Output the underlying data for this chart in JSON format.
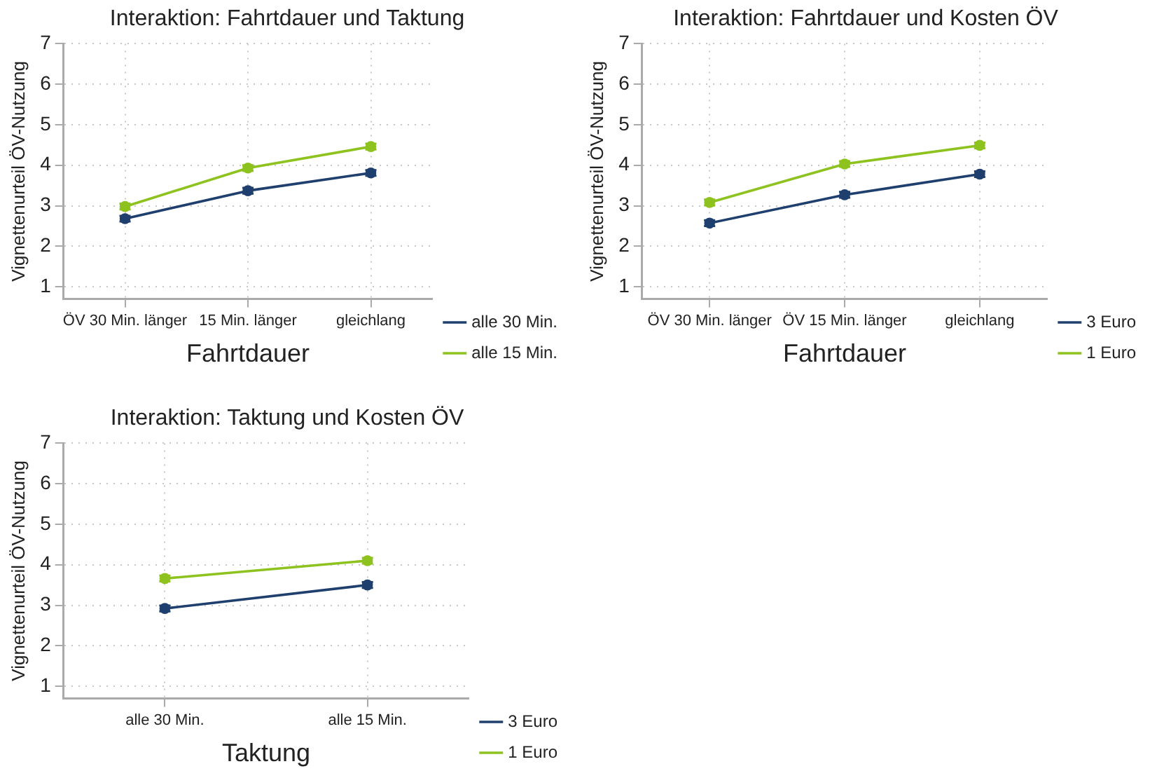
{
  "chart_data": [
    {
      "type": "line",
      "title": "Interaktion: Fahrtdauer und Taktung",
      "xlabel": "Fahrtdauer",
      "ylabel": "Vignettenurteil ÖV-Nutzung",
      "categories": [
        "ÖV 30 Min. länger",
        "15 Min. länger",
        "gleichlang"
      ],
      "series": [
        {
          "name": "alle 30 Min.",
          "color": "#1f3f6e",
          "values": [
            2.68,
            3.37,
            3.81
          ],
          "errors": [
            0.07,
            0.07,
            0.07
          ]
        },
        {
          "name": "alle 15 Min.",
          "color": "#8dc21f",
          "values": [
            2.98,
            3.93,
            4.46
          ],
          "errors": [
            0.07,
            0.07,
            0.07
          ]
        }
      ],
      "ylim": [
        0.7,
        7
      ],
      "yticks": [
        1,
        2,
        3,
        4,
        5,
        6,
        7
      ],
      "grid": true,
      "legend": "right",
      "marker": "circle"
    },
    {
      "type": "line",
      "title": "Interaktion: Fahrtdauer und Kosten ÖV",
      "xlabel": "Fahrtdauer",
      "ylabel": "Vignettenurteil ÖV-Nutzung",
      "categories": [
        "ÖV 30 Min. länger",
        "ÖV 15 Min. länger",
        "gleichlang"
      ],
      "series": [
        {
          "name": "3 Euro",
          "color": "#1f3f6e",
          "values": [
            2.57,
            3.27,
            3.78
          ],
          "errors": [
            0.07,
            0.07,
            0.07
          ]
        },
        {
          "name": "1 Euro",
          "color": "#8dc21f",
          "values": [
            3.08,
            4.03,
            4.49
          ],
          "errors": [
            0.07,
            0.07,
            0.07
          ]
        }
      ],
      "ylim": [
        0.7,
        7
      ],
      "yticks": [
        1,
        2,
        3,
        4,
        5,
        6,
        7
      ],
      "grid": true,
      "legend": "right",
      "marker": "circle"
    },
    {
      "type": "line",
      "title": "Interaktion: Taktung und Kosten ÖV",
      "xlabel": "Taktung",
      "ylabel": "Vignettenurteil ÖV-Nutzung",
      "categories": [
        "alle 30 Min.",
        "alle 15 Min."
      ],
      "series": [
        {
          "name": "3 Euro",
          "color": "#1f3f6e",
          "values": [
            2.92,
            3.5
          ],
          "errors": [
            0.07,
            0.07
          ]
        },
        {
          "name": "1 Euro",
          "color": "#8dc21f",
          "values": [
            3.66,
            4.1
          ],
          "errors": [
            0.07,
            0.07
          ]
        }
      ],
      "ylim": [
        0.7,
        7
      ],
      "yticks": [
        1,
        2,
        3,
        4,
        5,
        6,
        7
      ],
      "grid": true,
      "legend": "right",
      "marker": "circle"
    }
  ]
}
